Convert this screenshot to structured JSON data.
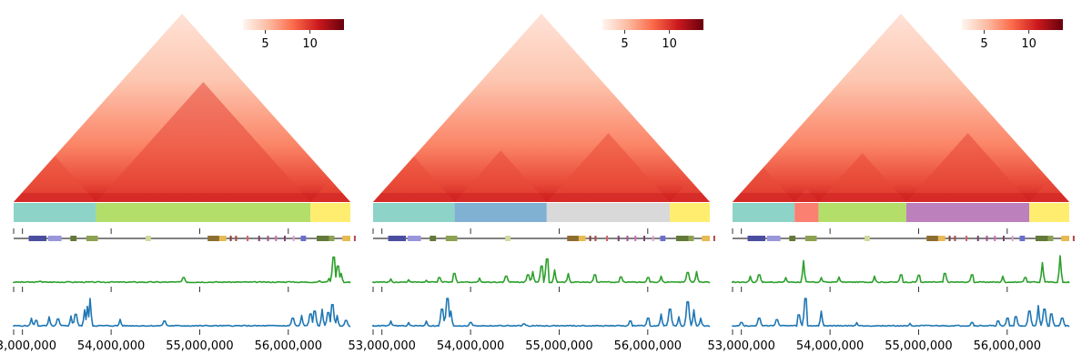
{
  "chart_data": {
    "type": "heatmap",
    "colormap": [
      "#fff5f0",
      "#fcbba1",
      "#fb6a4a",
      "#cb181d",
      "#67000d"
    ],
    "colorbar": {
      "min": 2.5,
      "max": 13.8,
      "ticks": [
        5,
        10
      ]
    },
    "x_range": [
      52900000,
      56700000
    ],
    "x_ticks": [
      53000000,
      54000000,
      55000000,
      56000000
    ],
    "x_tick_labels": [
      "53,000,000",
      "54,000,000",
      "55,000,000",
      "56,000,000"
    ],
    "genes": [
      {
        "start": 53070000,
        "end": 53270000,
        "color": "#4b4ea0",
        "strand": "+"
      },
      {
        "start": 53290000,
        "end": 53440000,
        "color": "#9a96dc",
        "strand": "+"
      },
      {
        "start": 53540000,
        "end": 53610000,
        "color": "#637939",
        "strand": "+"
      },
      {
        "start": 53720000,
        "end": 53850000,
        "color": "#8ca252",
        "strand": "+"
      },
      {
        "start": 54390000,
        "end": 54450000,
        "color": "#cedb9c",
        "strand": "+"
      },
      {
        "start": 55090000,
        "end": 55220000,
        "color": "#8c6d31",
        "strand": "+"
      },
      {
        "start": 55220000,
        "end": 55300000,
        "color": "#e7ba52",
        "strand": "+"
      },
      {
        "start": 55340000,
        "end": 55360000,
        "color": "#843c39",
        "strand": "+"
      },
      {
        "start": 55400000,
        "end": 55420000,
        "color": "#ad494a",
        "strand": "+"
      },
      {
        "start": 55530000,
        "end": 55550000,
        "color": "#d6616b",
        "strand": "+"
      },
      {
        "start": 55660000,
        "end": 55680000,
        "color": "#7b4173",
        "strand": "+"
      },
      {
        "start": 55760000,
        "end": 55780000,
        "color": "#a55194",
        "strand": "+"
      },
      {
        "start": 55850000,
        "end": 55870000,
        "color": "#ce6dbd",
        "strand": "+"
      },
      {
        "start": 55950000,
        "end": 55970000,
        "color": "#7b4173",
        "strand": "+"
      },
      {
        "start": 56050000,
        "end": 56070000,
        "color": "#de9ed6",
        "strand": "+"
      },
      {
        "start": 56140000,
        "end": 56200000,
        "color": "#6b6ecf",
        "strand": "+"
      },
      {
        "start": 56320000,
        "end": 56460000,
        "color": "#637939",
        "strand": "+"
      },
      {
        "start": 56460000,
        "end": 56520000,
        "color": "#8ca252",
        "strand": "+"
      },
      {
        "start": 56610000,
        "end": 56710000,
        "color": "#e7ba52",
        "strand": "+"
      },
      {
        "start": 56740000,
        "end": 56790000,
        "color": "#ad494a",
        "strand": "+"
      }
    ],
    "panels": [
      {
        "domains": [
          {
            "start": 52900000,
            "end": 53830000,
            "color": "#8dd3c7"
          },
          {
            "start": 53830000,
            "end": 56250000,
            "color": "#b3de69"
          },
          {
            "start": 56250000,
            "end": 56700000,
            "color": "#ffed6f"
          }
        ],
        "tads": [
          {
            "start": 52900000,
            "end": 53830000,
            "strength": 0.55
          },
          {
            "start": 53830000,
            "end": 56250000,
            "strength": 0.75
          },
          {
            "start": 56250000,
            "end": 56700000,
            "strength": 0.6
          }
        ],
        "green_peaks": [
          {
            "x": 53200000,
            "h": 0.06
          },
          {
            "x": 53500000,
            "h": 0.05
          },
          {
            "x": 54000000,
            "h": 0.04
          },
          {
            "x": 54500000,
            "h": 0.03
          },
          {
            "x": 54820000,
            "h": 0.2
          },
          {
            "x": 55300000,
            "h": 0.03
          },
          {
            "x": 56000000,
            "h": 0.05
          },
          {
            "x": 56350000,
            "h": 0.08
          },
          {
            "x": 56460000,
            "h": 0.17
          },
          {
            "x": 56510000,
            "h": 0.95
          },
          {
            "x": 56560000,
            "h": 0.62
          },
          {
            "x": 56600000,
            "h": 0.35
          }
        ],
        "blue_peaks": [
          {
            "x": 53100000,
            "h": 0.3
          },
          {
            "x": 53150000,
            "h": 0.22
          },
          {
            "x": 53300000,
            "h": 0.35
          },
          {
            "x": 53400000,
            "h": 0.27
          },
          {
            "x": 53550000,
            "h": 0.38
          },
          {
            "x": 53600000,
            "h": 0.44
          },
          {
            "x": 53700000,
            "h": 0.6
          },
          {
            "x": 53730000,
            "h": 0.72
          },
          {
            "x": 53760000,
            "h": 1.0
          },
          {
            "x": 54100000,
            "h": 0.26
          },
          {
            "x": 54600000,
            "h": 0.2
          },
          {
            "x": 56050000,
            "h": 0.3
          },
          {
            "x": 56150000,
            "h": 0.4
          },
          {
            "x": 56250000,
            "h": 0.45
          },
          {
            "x": 56300000,
            "h": 0.55
          },
          {
            "x": 56380000,
            "h": 0.62
          },
          {
            "x": 56450000,
            "h": 0.5
          },
          {
            "x": 56500000,
            "h": 0.78
          },
          {
            "x": 56550000,
            "h": 0.4
          },
          {
            "x": 56650000,
            "h": 0.22
          }
        ]
      },
      {
        "domains": [
          {
            "start": 52900000,
            "end": 53820000,
            "color": "#8dd3c7"
          },
          {
            "start": 53820000,
            "end": 54860000,
            "color": "#80b1d3"
          },
          {
            "start": 54860000,
            "end": 56250000,
            "color": "#d9d9d9"
          },
          {
            "start": 56250000,
            "end": 56700000,
            "color": "#ffed6f"
          }
        ],
        "tads": [
          {
            "start": 52900000,
            "end": 53820000,
            "strength": 0.6
          },
          {
            "start": 53820000,
            "end": 54860000,
            "strength": 0.65
          },
          {
            "start": 54860000,
            "end": 56250000,
            "strength": 0.6
          },
          {
            "start": 56250000,
            "end": 56700000,
            "strength": 0.65
          }
        ],
        "green_peaks": [
          {
            "x": 53100000,
            "h": 0.15
          },
          {
            "x": 53300000,
            "h": 0.12
          },
          {
            "x": 53500000,
            "h": 0.1
          },
          {
            "x": 53650000,
            "h": 0.2
          },
          {
            "x": 53820000,
            "h": 0.35
          },
          {
            "x": 54100000,
            "h": 0.18
          },
          {
            "x": 54400000,
            "h": 0.25
          },
          {
            "x": 54650000,
            "h": 0.3
          },
          {
            "x": 54700000,
            "h": 0.42
          },
          {
            "x": 54800000,
            "h": 0.62
          },
          {
            "x": 54860000,
            "h": 0.88
          },
          {
            "x": 54950000,
            "h": 0.48
          },
          {
            "x": 55100000,
            "h": 0.35
          },
          {
            "x": 55400000,
            "h": 0.3
          },
          {
            "x": 55700000,
            "h": 0.22
          },
          {
            "x": 56000000,
            "h": 0.2
          },
          {
            "x": 56150000,
            "h": 0.25
          },
          {
            "x": 56450000,
            "h": 0.38
          },
          {
            "x": 56550000,
            "h": 0.42
          }
        ],
        "blue_peaks": [
          {
            "x": 53100000,
            "h": 0.2
          },
          {
            "x": 53300000,
            "h": 0.15
          },
          {
            "x": 53500000,
            "h": 0.2
          },
          {
            "x": 53680000,
            "h": 0.62
          },
          {
            "x": 53740000,
            "h": 1.0
          },
          {
            "x": 53780000,
            "h": 0.55
          },
          {
            "x": 54000000,
            "h": 0.15
          },
          {
            "x": 54600000,
            "h": 0.1
          },
          {
            "x": 55800000,
            "h": 0.2
          },
          {
            "x": 56000000,
            "h": 0.3
          },
          {
            "x": 56150000,
            "h": 0.45
          },
          {
            "x": 56250000,
            "h": 0.62
          },
          {
            "x": 56350000,
            "h": 0.35
          },
          {
            "x": 56450000,
            "h": 0.88
          },
          {
            "x": 56520000,
            "h": 0.6
          },
          {
            "x": 56600000,
            "h": 0.3
          }
        ]
      },
      {
        "domains": [
          {
            "start": 52900000,
            "end": 53600000,
            "color": "#8dd3c7"
          },
          {
            "start": 53600000,
            "end": 53870000,
            "color": "#fb8072"
          },
          {
            "start": 53870000,
            "end": 54860000,
            "color": "#b3de69"
          },
          {
            "start": 54860000,
            "end": 56250000,
            "color": "#bc80bd"
          },
          {
            "start": 56250000,
            "end": 56700000,
            "color": "#ffed6f"
          }
        ],
        "tads": [
          {
            "start": 52900000,
            "end": 53600000,
            "strength": 0.65
          },
          {
            "start": 53600000,
            "end": 53870000,
            "strength": 0.6
          },
          {
            "start": 53870000,
            "end": 54860000,
            "strength": 0.7
          },
          {
            "start": 54860000,
            "end": 56250000,
            "strength": 0.75
          },
          {
            "start": 56250000,
            "end": 56700000,
            "strength": 0.65
          }
        ],
        "green_peaks": [
          {
            "x": 53100000,
            "h": 0.25
          },
          {
            "x": 53200000,
            "h": 0.3
          },
          {
            "x": 53500000,
            "h": 0.2
          },
          {
            "x": 53700000,
            "h": 0.82
          },
          {
            "x": 53900000,
            "h": 0.2
          },
          {
            "x": 54100000,
            "h": 0.22
          },
          {
            "x": 54500000,
            "h": 0.25
          },
          {
            "x": 54800000,
            "h": 0.3
          },
          {
            "x": 55000000,
            "h": 0.28
          },
          {
            "x": 55300000,
            "h": 0.35
          },
          {
            "x": 55600000,
            "h": 0.3
          },
          {
            "x": 55950000,
            "h": 0.25
          },
          {
            "x": 56200000,
            "h": 0.2
          },
          {
            "x": 56400000,
            "h": 0.75
          },
          {
            "x": 56600000,
            "h": 1.0
          }
        ],
        "blue_peaks": [
          {
            "x": 53000000,
            "h": 0.15
          },
          {
            "x": 53200000,
            "h": 0.3
          },
          {
            "x": 53400000,
            "h": 0.25
          },
          {
            "x": 53650000,
            "h": 0.42
          },
          {
            "x": 53720000,
            "h": 1.0
          },
          {
            "x": 53900000,
            "h": 0.55
          },
          {
            "x": 54300000,
            "h": 0.15
          },
          {
            "x": 54900000,
            "h": 0.12
          },
          {
            "x": 55600000,
            "h": 0.15
          },
          {
            "x": 55900000,
            "h": 0.2
          },
          {
            "x": 56000000,
            "h": 0.3
          },
          {
            "x": 56100000,
            "h": 0.35
          },
          {
            "x": 56250000,
            "h": 0.55
          },
          {
            "x": 56350000,
            "h": 0.75
          },
          {
            "x": 56420000,
            "h": 0.62
          },
          {
            "x": 56500000,
            "h": 0.45
          },
          {
            "x": 56620000,
            "h": 0.3
          }
        ]
      }
    ]
  }
}
